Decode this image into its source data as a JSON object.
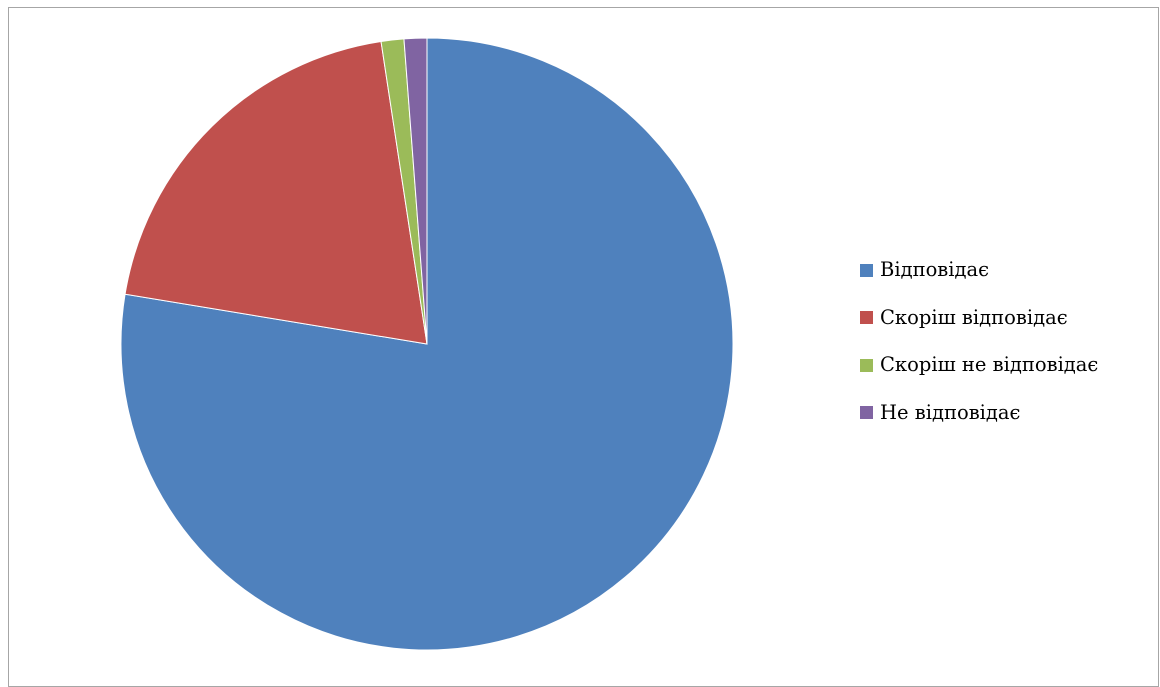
{
  "chart_data": {
    "type": "pie",
    "categories": [
      "Відповідає",
      "Скоріш відповідає",
      "Скоріш не відповідає",
      "Не відповідає"
    ],
    "values": [
      77.6,
      20.0,
      1.2,
      1.2
    ],
    "colors": [
      "#4f81bd",
      "#c0504d",
      "#9bbb59",
      "#8064a2"
    ],
    "legend_position": "right",
    "start_angle_deg": 0,
    "direction": "clockwise"
  }
}
